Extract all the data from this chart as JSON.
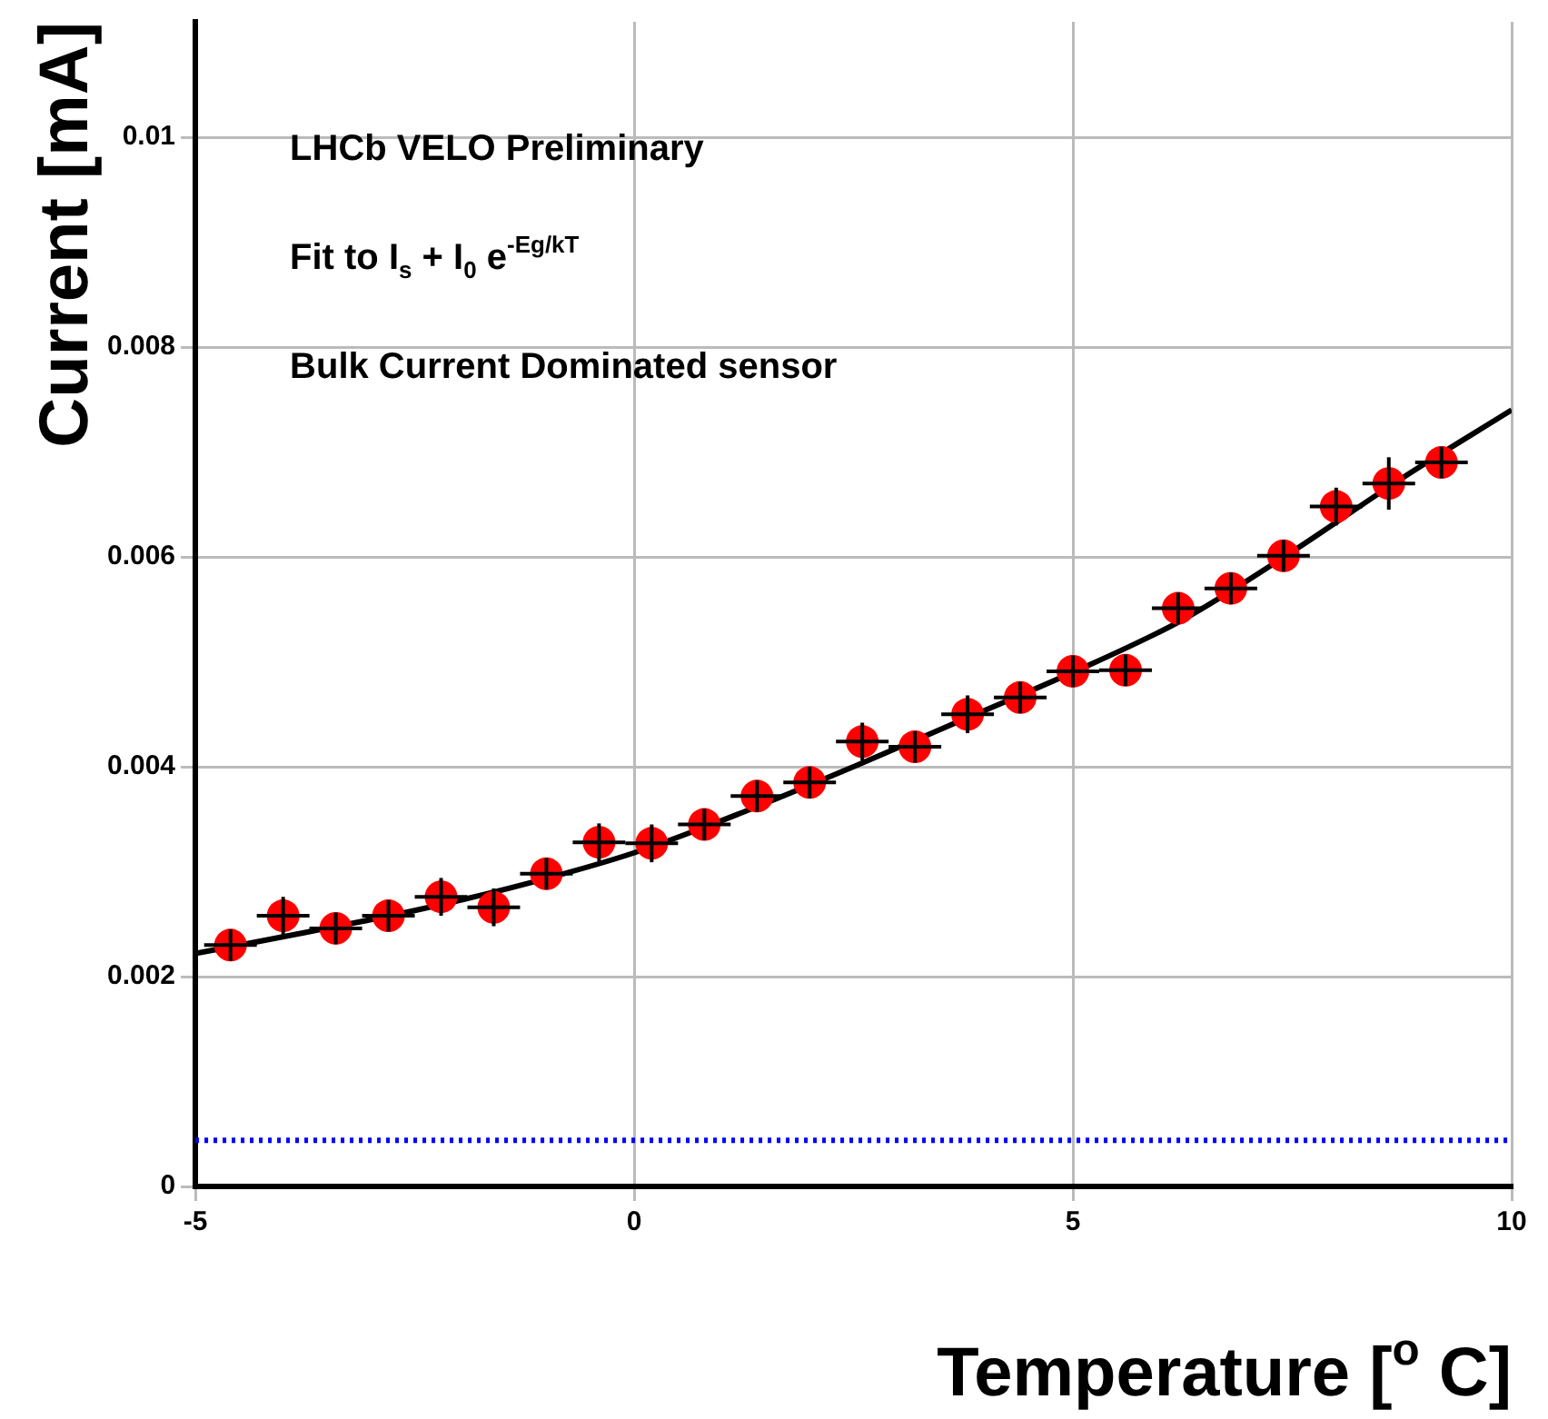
{
  "chart_data": {
    "type": "scatter",
    "xlabel": "Temperature [$^{o}$ C]",
    "ylabel": "Current [mA]",
    "annotations": [
      "LHCb VELO Preliminary",
      "Fit to I$_{s}$ + I$_{0}$ e$^{-Eg/kT}$",
      "Bulk Current Dominated sensor"
    ],
    "xlim": [
      -5,
      10
    ],
    "xticks": [
      -5,
      0,
      5,
      10
    ],
    "ylim": [
      0,
      0.0111
    ],
    "yticks": [
      0,
      0.002,
      0.004,
      0.006,
      0.008,
      0.01
    ],
    "grid": true,
    "marker": "circle",
    "series": [
      {
        "type": "scatter",
        "color": "#ff0000",
        "x": [
          -4.6,
          -4.0,
          -3.4,
          -2.8,
          -2.2,
          -1.6,
          -1.0,
          -0.4,
          0.2,
          0.8,
          1.4,
          2.0,
          2.6,
          3.2,
          3.8,
          4.4,
          5.0,
          5.6,
          6.2,
          6.8,
          7.4,
          8.0,
          8.6,
          9.2
        ],
        "values": [
          0.0023,
          0.00258,
          0.00246,
          0.00258,
          0.00276,
          0.00266,
          0.00298,
          0.00328,
          0.00327,
          0.00345,
          0.00372,
          0.00385,
          0.00424,
          0.00419,
          0.0045,
          0.00466,
          0.00491,
          0.00492,
          0.00551,
          0.0057,
          0.00601,
          0.00648,
          0.0067,
          0.0069
        ],
        "errors": [
          0.00015,
          0.00018,
          0.00015,
          0.00015,
          0.00018,
          0.00018,
          0.00015,
          0.00018,
          0.00018,
          0.00015,
          0.00015,
          0.00015,
          0.00018,
          0.00015,
          0.00018,
          0.00015,
          0.00015,
          0.00015,
          0.00015,
          0.00015,
          0.00015,
          0.00018,
          0.00025,
          0.00015
        ],
        "xerrors": [
          0.3,
          0.3,
          0.3,
          0.3,
          0.3,
          0.3,
          0.3,
          0.3,
          0.3,
          0.3,
          0.3,
          0.3,
          0.3,
          0.3,
          0.3,
          0.3,
          0.3,
          0.3,
          0.3,
          0.3,
          0.3,
          0.3,
          0.3,
          0.3
        ]
      },
      {
        "type": "line",
        "color": "#000000",
        "marker": "none",
        "x": [
          -5,
          -3.75,
          -2.5,
          -1.25,
          0,
          1.25,
          2.5,
          3.75,
          5,
          6.25,
          7.5,
          8.75,
          10
        ],
        "values": [
          0.00222,
          0.00242,
          0.00263,
          0.00288,
          0.00318,
          0.00357,
          0.004,
          0.00445,
          0.0049,
          0.0054,
          0.00605,
          0.00675,
          0.0074
        ]
      }
    ],
    "ref_lines": [
      {
        "axis": "y",
        "value": 0.00044,
        "color": "#0000ff",
        "line_style": "dotted"
      }
    ]
  }
}
